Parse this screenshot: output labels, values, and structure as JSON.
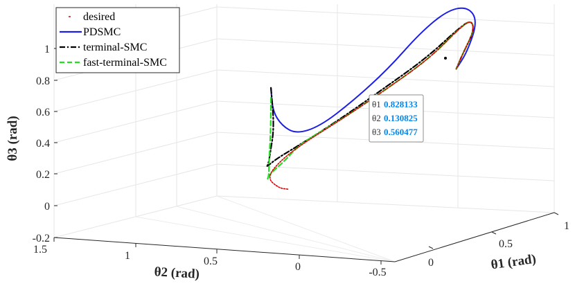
{
  "chart_data": {
    "type": "line3d",
    "title": "",
    "xlabel": "θ1 (rad)",
    "ylabel": "θ2 (rad)",
    "zlabel": "θ3 (rad)",
    "xlim": [
      -0.2,
      1
    ],
    "ylim": [
      -0.5,
      1.5
    ],
    "zlim": [
      -0.2,
      1.2
    ],
    "x_ticks": [
      "0",
      "0.5",
      "1"
    ],
    "y_ticks": [
      "1.5",
      "1",
      "0.5",
      "0",
      "-0.5"
    ],
    "z_ticks": [
      "-0.2",
      "0",
      "0.2",
      "0.4",
      "0.6",
      "0.8",
      "1"
    ],
    "grid": true,
    "legend_position": "top-left",
    "series": [
      {
        "name": "desired",
        "color": "#e00000",
        "style": "dotted",
        "points": [
          [
            0.4,
            0.7,
            0.04
          ],
          [
            0.38,
            0.74,
            0.05
          ],
          [
            0.36,
            0.82,
            0.12
          ],
          [
            0.4,
            0.8,
            0.22
          ],
          [
            0.46,
            0.73,
            0.32
          ],
          [
            0.55,
            0.58,
            0.45
          ],
          [
            0.66,
            0.4,
            0.62
          ],
          [
            0.77,
            0.23,
            0.8
          ],
          [
            0.85,
            0.13,
            0.98
          ],
          [
            0.88,
            0.1,
            1.02
          ],
          [
            0.9,
            0.14,
            0.96
          ],
          [
            0.88,
            0.2,
            0.84
          ],
          [
            0.86,
            0.22,
            0.74
          ]
        ]
      },
      {
        "name": "PDSMC",
        "color": "#1d1de8",
        "style": "solid",
        "points": [
          [
            0.45,
            1.08,
            0.7
          ],
          [
            0.45,
            1.06,
            0.56
          ],
          [
            0.46,
            0.98,
            0.46
          ],
          [
            0.48,
            0.87,
            0.4
          ],
          [
            0.52,
            0.72,
            0.43
          ],
          [
            0.58,
            0.53,
            0.56
          ],
          [
            0.66,
            0.37,
            0.74
          ],
          [
            0.74,
            0.25,
            0.95
          ],
          [
            0.81,
            0.15,
            1.08
          ],
          [
            0.87,
            0.11,
            1.1
          ],
          [
            0.91,
            0.13,
            1.02
          ],
          [
            0.89,
            0.19,
            0.84
          ],
          [
            0.86,
            0.22,
            0.74
          ]
        ]
      },
      {
        "name": "terminal-SMC",
        "color": "#000000",
        "style": "dashdot",
        "points": [
          [
            0.45,
            1.08,
            0.7
          ],
          [
            0.45,
            1.04,
            0.46
          ],
          [
            0.43,
            1.02,
            0.3
          ],
          [
            0.4,
            0.94,
            0.22
          ],
          [
            0.37,
            0.86,
            0.19
          ],
          [
            0.38,
            0.77,
            0.23
          ],
          [
            0.44,
            0.74,
            0.3
          ],
          [
            0.54,
            0.6,
            0.44
          ],
          [
            0.65,
            0.41,
            0.62
          ],
          [
            0.76,
            0.24,
            0.8
          ],
          [
            0.85,
            0.14,
            0.98
          ],
          [
            0.88,
            0.1,
            1.02
          ],
          [
            0.9,
            0.14,
            0.96
          ],
          [
            0.88,
            0.2,
            0.84
          ],
          [
            0.86,
            0.22,
            0.74
          ]
        ]
      },
      {
        "name": "fast-terminal-SMC",
        "color": "#22dd22",
        "style": "dashed",
        "points": [
          [
            0.45,
            1.08,
            0.64
          ],
          [
            0.44,
            1.05,
            0.42
          ],
          [
            0.42,
            1.0,
            0.25
          ],
          [
            0.39,
            0.9,
            0.13
          ],
          [
            0.36,
            0.83,
            0.11
          ],
          [
            0.37,
            0.77,
            0.16
          ],
          [
            0.4,
            0.75,
            0.21
          ],
          [
            0.45,
            0.72,
            0.32
          ],
          [
            0.55,
            0.58,
            0.45
          ],
          [
            0.66,
            0.4,
            0.62
          ],
          [
            0.77,
            0.23,
            0.8
          ],
          [
            0.85,
            0.13,
            0.98
          ],
          [
            0.88,
            0.1,
            1.02
          ],
          [
            0.9,
            0.14,
            0.96
          ],
          [
            0.88,
            0.2,
            0.84
          ],
          [
            0.86,
            0.22,
            0.74
          ]
        ]
      }
    ],
    "datatip": {
      "labels": [
        "θ1",
        "θ2",
        "θ3"
      ],
      "values": [
        "0.828133",
        "0.130825",
        "0.560477"
      ]
    }
  }
}
